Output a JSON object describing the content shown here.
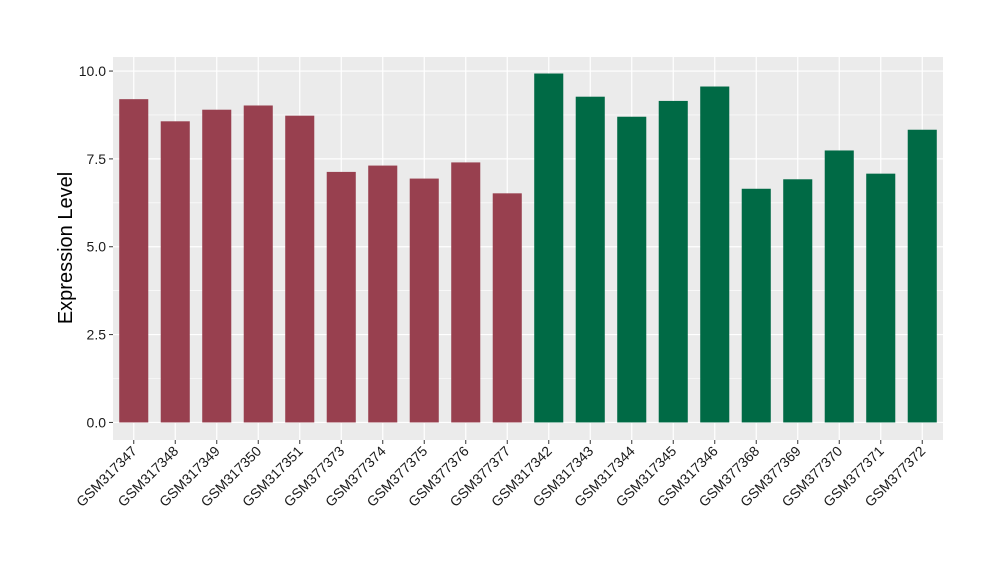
{
  "chart_data": {
    "type": "bar",
    "title": "",
    "xlabel": "",
    "ylabel": "Expression Level",
    "ylim": [
      -0.5,
      10.4
    ],
    "yticks": [
      0.0,
      2.5,
      5.0,
      7.5,
      10.0
    ],
    "ytick_labels": [
      "0.0",
      "2.5",
      "5.0",
      "7.5",
      "10.0"
    ],
    "grid": true,
    "legend": "none",
    "colors": {
      "group1": "#98404F",
      "group2": "#006A45",
      "panel": "#EBEBEB",
      "grid": "#FFFFFF"
    },
    "categories": [
      "GSM317347",
      "GSM317348",
      "GSM317349",
      "GSM317350",
      "GSM317351",
      "GSM377373",
      "GSM377374",
      "GSM377375",
      "GSM377376",
      "GSM377377",
      "GSM317342",
      "GSM317343",
      "GSM317344",
      "GSM317345",
      "GSM317346",
      "GSM377368",
      "GSM377369",
      "GSM377370",
      "GSM377371",
      "GSM377372"
    ],
    "values": [
      9.2,
      8.57,
      8.9,
      9.02,
      8.73,
      7.13,
      7.31,
      6.94,
      7.4,
      6.52,
      9.93,
      9.27,
      8.7,
      9.15,
      9.56,
      6.65,
      6.92,
      7.74,
      7.08,
      8.33
    ],
    "groups": [
      1,
      1,
      1,
      1,
      1,
      1,
      1,
      1,
      1,
      1,
      2,
      2,
      2,
      2,
      2,
      2,
      2,
      2,
      2,
      2
    ]
  }
}
